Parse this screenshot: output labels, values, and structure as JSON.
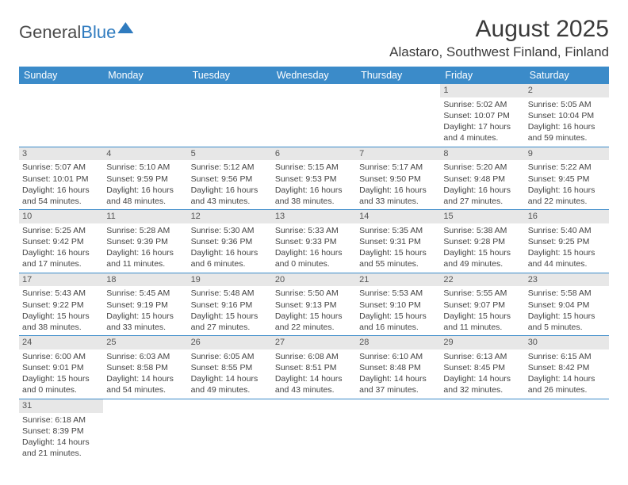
{
  "logo": {
    "text1": "General",
    "text2": "Blue"
  },
  "title": "August 2025",
  "location": "Alastaro, Southwest Finland, Finland",
  "colors": {
    "header_bg": "#3b8bc9",
    "header_fg": "#ffffff",
    "daynum_bg": "#e7e7e7",
    "row_border": "#3b8bc9"
  },
  "weekdays": [
    "Sunday",
    "Monday",
    "Tuesday",
    "Wednesday",
    "Thursday",
    "Friday",
    "Saturday"
  ],
  "weeks": [
    [
      null,
      null,
      null,
      null,
      null,
      {
        "n": "1",
        "sr": "Sunrise: 5:02 AM",
        "ss": "Sunset: 10:07 PM",
        "d1": "Daylight: 17 hours",
        "d2": "and 4 minutes."
      },
      {
        "n": "2",
        "sr": "Sunrise: 5:05 AM",
        "ss": "Sunset: 10:04 PM",
        "d1": "Daylight: 16 hours",
        "d2": "and 59 minutes."
      }
    ],
    [
      {
        "n": "3",
        "sr": "Sunrise: 5:07 AM",
        "ss": "Sunset: 10:01 PM",
        "d1": "Daylight: 16 hours",
        "d2": "and 54 minutes."
      },
      {
        "n": "4",
        "sr": "Sunrise: 5:10 AM",
        "ss": "Sunset: 9:59 PM",
        "d1": "Daylight: 16 hours",
        "d2": "and 48 minutes."
      },
      {
        "n": "5",
        "sr": "Sunrise: 5:12 AM",
        "ss": "Sunset: 9:56 PM",
        "d1": "Daylight: 16 hours",
        "d2": "and 43 minutes."
      },
      {
        "n": "6",
        "sr": "Sunrise: 5:15 AM",
        "ss": "Sunset: 9:53 PM",
        "d1": "Daylight: 16 hours",
        "d2": "and 38 minutes."
      },
      {
        "n": "7",
        "sr": "Sunrise: 5:17 AM",
        "ss": "Sunset: 9:50 PM",
        "d1": "Daylight: 16 hours",
        "d2": "and 33 minutes."
      },
      {
        "n": "8",
        "sr": "Sunrise: 5:20 AM",
        "ss": "Sunset: 9:48 PM",
        "d1": "Daylight: 16 hours",
        "d2": "and 27 minutes."
      },
      {
        "n": "9",
        "sr": "Sunrise: 5:22 AM",
        "ss": "Sunset: 9:45 PM",
        "d1": "Daylight: 16 hours",
        "d2": "and 22 minutes."
      }
    ],
    [
      {
        "n": "10",
        "sr": "Sunrise: 5:25 AM",
        "ss": "Sunset: 9:42 PM",
        "d1": "Daylight: 16 hours",
        "d2": "and 17 minutes."
      },
      {
        "n": "11",
        "sr": "Sunrise: 5:28 AM",
        "ss": "Sunset: 9:39 PM",
        "d1": "Daylight: 16 hours",
        "d2": "and 11 minutes."
      },
      {
        "n": "12",
        "sr": "Sunrise: 5:30 AM",
        "ss": "Sunset: 9:36 PM",
        "d1": "Daylight: 16 hours",
        "d2": "and 6 minutes."
      },
      {
        "n": "13",
        "sr": "Sunrise: 5:33 AM",
        "ss": "Sunset: 9:33 PM",
        "d1": "Daylight: 16 hours",
        "d2": "and 0 minutes."
      },
      {
        "n": "14",
        "sr": "Sunrise: 5:35 AM",
        "ss": "Sunset: 9:31 PM",
        "d1": "Daylight: 15 hours",
        "d2": "and 55 minutes."
      },
      {
        "n": "15",
        "sr": "Sunrise: 5:38 AM",
        "ss": "Sunset: 9:28 PM",
        "d1": "Daylight: 15 hours",
        "d2": "and 49 minutes."
      },
      {
        "n": "16",
        "sr": "Sunrise: 5:40 AM",
        "ss": "Sunset: 9:25 PM",
        "d1": "Daylight: 15 hours",
        "d2": "and 44 minutes."
      }
    ],
    [
      {
        "n": "17",
        "sr": "Sunrise: 5:43 AM",
        "ss": "Sunset: 9:22 PM",
        "d1": "Daylight: 15 hours",
        "d2": "and 38 minutes."
      },
      {
        "n": "18",
        "sr": "Sunrise: 5:45 AM",
        "ss": "Sunset: 9:19 PM",
        "d1": "Daylight: 15 hours",
        "d2": "and 33 minutes."
      },
      {
        "n": "19",
        "sr": "Sunrise: 5:48 AM",
        "ss": "Sunset: 9:16 PM",
        "d1": "Daylight: 15 hours",
        "d2": "and 27 minutes."
      },
      {
        "n": "20",
        "sr": "Sunrise: 5:50 AM",
        "ss": "Sunset: 9:13 PM",
        "d1": "Daylight: 15 hours",
        "d2": "and 22 minutes."
      },
      {
        "n": "21",
        "sr": "Sunrise: 5:53 AM",
        "ss": "Sunset: 9:10 PM",
        "d1": "Daylight: 15 hours",
        "d2": "and 16 minutes."
      },
      {
        "n": "22",
        "sr": "Sunrise: 5:55 AM",
        "ss": "Sunset: 9:07 PM",
        "d1": "Daylight: 15 hours",
        "d2": "and 11 minutes."
      },
      {
        "n": "23",
        "sr": "Sunrise: 5:58 AM",
        "ss": "Sunset: 9:04 PM",
        "d1": "Daylight: 15 hours",
        "d2": "and 5 minutes."
      }
    ],
    [
      {
        "n": "24",
        "sr": "Sunrise: 6:00 AM",
        "ss": "Sunset: 9:01 PM",
        "d1": "Daylight: 15 hours",
        "d2": "and 0 minutes."
      },
      {
        "n": "25",
        "sr": "Sunrise: 6:03 AM",
        "ss": "Sunset: 8:58 PM",
        "d1": "Daylight: 14 hours",
        "d2": "and 54 minutes."
      },
      {
        "n": "26",
        "sr": "Sunrise: 6:05 AM",
        "ss": "Sunset: 8:55 PM",
        "d1": "Daylight: 14 hours",
        "d2": "and 49 minutes."
      },
      {
        "n": "27",
        "sr": "Sunrise: 6:08 AM",
        "ss": "Sunset: 8:51 PM",
        "d1": "Daylight: 14 hours",
        "d2": "and 43 minutes."
      },
      {
        "n": "28",
        "sr": "Sunrise: 6:10 AM",
        "ss": "Sunset: 8:48 PM",
        "d1": "Daylight: 14 hours",
        "d2": "and 37 minutes."
      },
      {
        "n": "29",
        "sr": "Sunrise: 6:13 AM",
        "ss": "Sunset: 8:45 PM",
        "d1": "Daylight: 14 hours",
        "d2": "and 32 minutes."
      },
      {
        "n": "30",
        "sr": "Sunrise: 6:15 AM",
        "ss": "Sunset: 8:42 PM",
        "d1": "Daylight: 14 hours",
        "d2": "and 26 minutes."
      }
    ],
    [
      {
        "n": "31",
        "sr": "Sunrise: 6:18 AM",
        "ss": "Sunset: 8:39 PM",
        "d1": "Daylight: 14 hours",
        "d2": "and 21 minutes."
      },
      null,
      null,
      null,
      null,
      null,
      null
    ]
  ]
}
